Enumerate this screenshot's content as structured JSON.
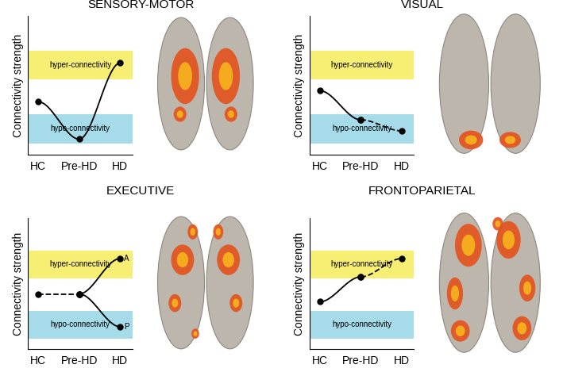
{
  "chart_data": [
    {
      "type": "line",
      "title": "SENSORY-MOTOR",
      "y_label": "Connectivity strength",
      "categories": [
        "HC",
        "Pre-HD",
        "HD"
      ],
      "ylim": [
        0,
        10
      ],
      "yticks": [],
      "tick_labels": "x",
      "marker": "circle",
      "bands": [
        {
          "label": "hyper-connectivity",
          "range": [
            5.4,
            7.5
          ],
          "color": "#f7ee74"
        },
        {
          "label": "hypo-connectivity",
          "range": [
            0.8,
            2.9
          ],
          "color": "#a6dbea"
        }
      ],
      "series": [
        {
          "values": [
            3.8,
            1.1,
            6.6
          ],
          "line_style": "solid",
          "color": "#000000"
        }
      ]
    },
    {
      "type": "line",
      "title": "VISUAL",
      "y_label": "Connectivity strength",
      "categories": [
        "HC",
        "Pre-HD",
        "HD"
      ],
      "ylim": [
        0,
        10
      ],
      "yticks": [],
      "tick_labels": "x",
      "marker": "circle",
      "bands": [
        {
          "label": "hyper-connectivity",
          "range": [
            5.4,
            7.5
          ],
          "color": "#f7ee74"
        },
        {
          "label": "hypo-connectivity",
          "range": [
            0.8,
            2.9
          ],
          "color": "#a6dbea"
        }
      ],
      "series": [
        {
          "values": [
            4.6,
            2.5,
            null
          ],
          "line_style": "solid",
          "color": "#000000"
        },
        {
          "values": [
            null,
            2.5,
            1.7
          ],
          "line_style": "dashed",
          "color": "#000000"
        }
      ]
    },
    {
      "type": "line",
      "title": "EXECUTIVE",
      "y_label": "Connectivity strength",
      "categories": [
        "HC",
        "Pre-HD",
        "HD"
      ],
      "ylim": [
        0,
        10
      ],
      "yticks": [],
      "tick_labels": "x",
      "marker": "circle",
      "bands": [
        {
          "label": "hyper-connectivity",
          "range": [
            5.4,
            7.5
          ],
          "color": "#f7ee74"
        },
        {
          "label": "hypo-connectivity",
          "range": [
            0.8,
            2.9
          ],
          "color": "#a6dbea"
        }
      ],
      "series": [
        {
          "values": [
            4.2,
            4.2,
            null
          ],
          "line_style": "dashed",
          "color": "#000000"
        },
        {
          "name": "A",
          "values": [
            null,
            4.2,
            6.9
          ],
          "line_style": "solid",
          "color": "#000000"
        },
        {
          "name": "P",
          "values": [
            null,
            4.2,
            1.7
          ],
          "line_style": "solid",
          "color": "#000000"
        }
      ]
    },
    {
      "type": "line",
      "title": "FRONTOPARIETAL",
      "y_label": "Connectivity strength",
      "categories": [
        "HC",
        "Pre-HD",
        "HD"
      ],
      "ylim": [
        0,
        10
      ],
      "yticks": [],
      "tick_labels": "x",
      "marker": "circle",
      "bands": [
        {
          "label": "hyper-connectivity",
          "range": [
            5.4,
            7.5
          ],
          "color": "#f7ee74"
        },
        {
          "label": "hypo-connectivity",
          "range": [
            0.8,
            2.9
          ],
          "color": "#a6dbea"
        }
      ],
      "series": [
        {
          "values": [
            3.6,
            5.5,
            null
          ],
          "line_style": "solid",
          "color": "#000000"
        },
        {
          "values": [
            null,
            5.5,
            6.9
          ],
          "line_style": "dashed",
          "color": "#000000"
        }
      ]
    }
  ]
}
